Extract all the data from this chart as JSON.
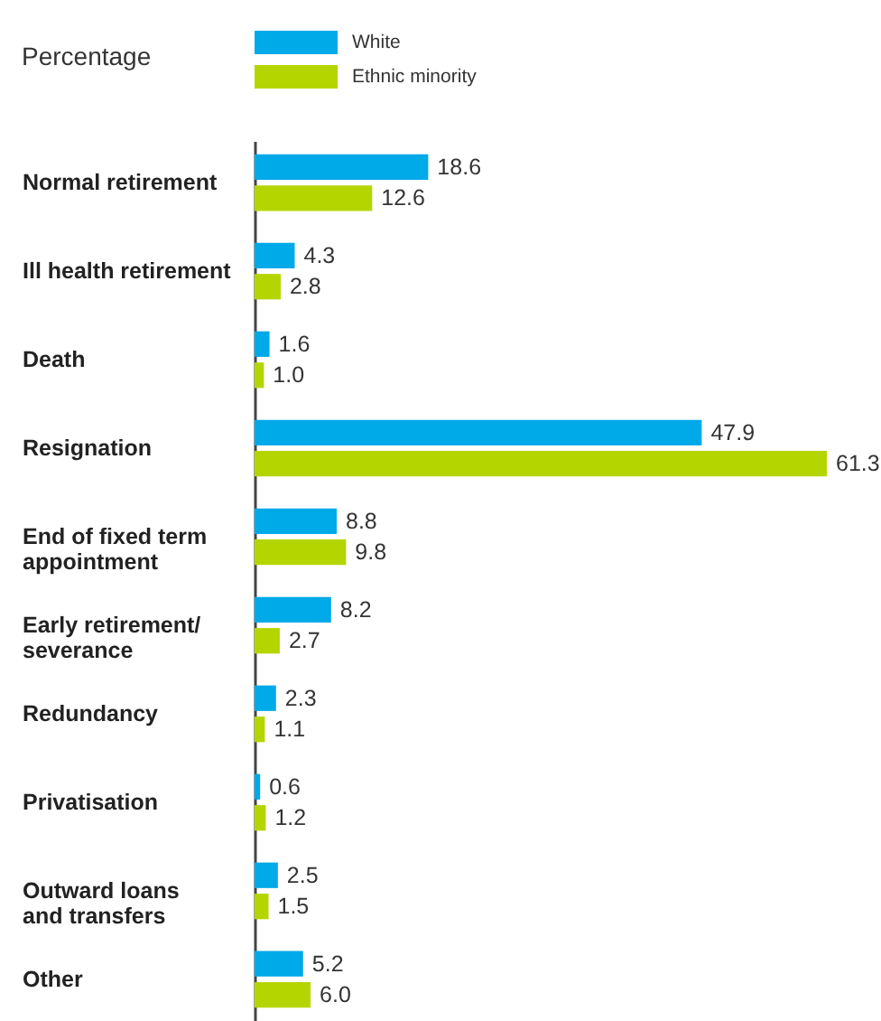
{
  "chart_data": {
    "type": "bar",
    "orientation": "horizontal",
    "xlabel": "Percentage",
    "categories": [
      "Normal retirement",
      "Ill health retirement",
      "Death",
      "Resignation",
      "End of fixed term\nappointment",
      "Early retirement/\nseverance",
      "Redundancy",
      "Privatisation",
      "Outward loans\nand transfers",
      "Other"
    ],
    "series": [
      {
        "name": "White",
        "color": "#00a9e8",
        "values": [
          18.6,
          4.3,
          1.6,
          47.9,
          8.8,
          8.2,
          2.3,
          0.6,
          2.5,
          5.2
        ],
        "value_labels": [
          "18.6",
          "4.3",
          "1.6",
          "47.9",
          "8.8",
          "8.2",
          "2.3",
          "0.6",
          "2.5",
          "5.2"
        ]
      },
      {
        "name": "Ethnic minority",
        "color": "#b5d500",
        "values": [
          12.6,
          2.8,
          1.0,
          61.3,
          9.8,
          2.7,
          1.1,
          1.2,
          1.5,
          6.0
        ],
        "value_labels": [
          "12.6",
          "2.8",
          "1.0",
          "61.3",
          "9.8",
          "2.7",
          "1.1",
          "1.2",
          "1.5",
          "6.0"
        ]
      }
    ],
    "legend": "top left",
    "tick_labels": "y"
  }
}
